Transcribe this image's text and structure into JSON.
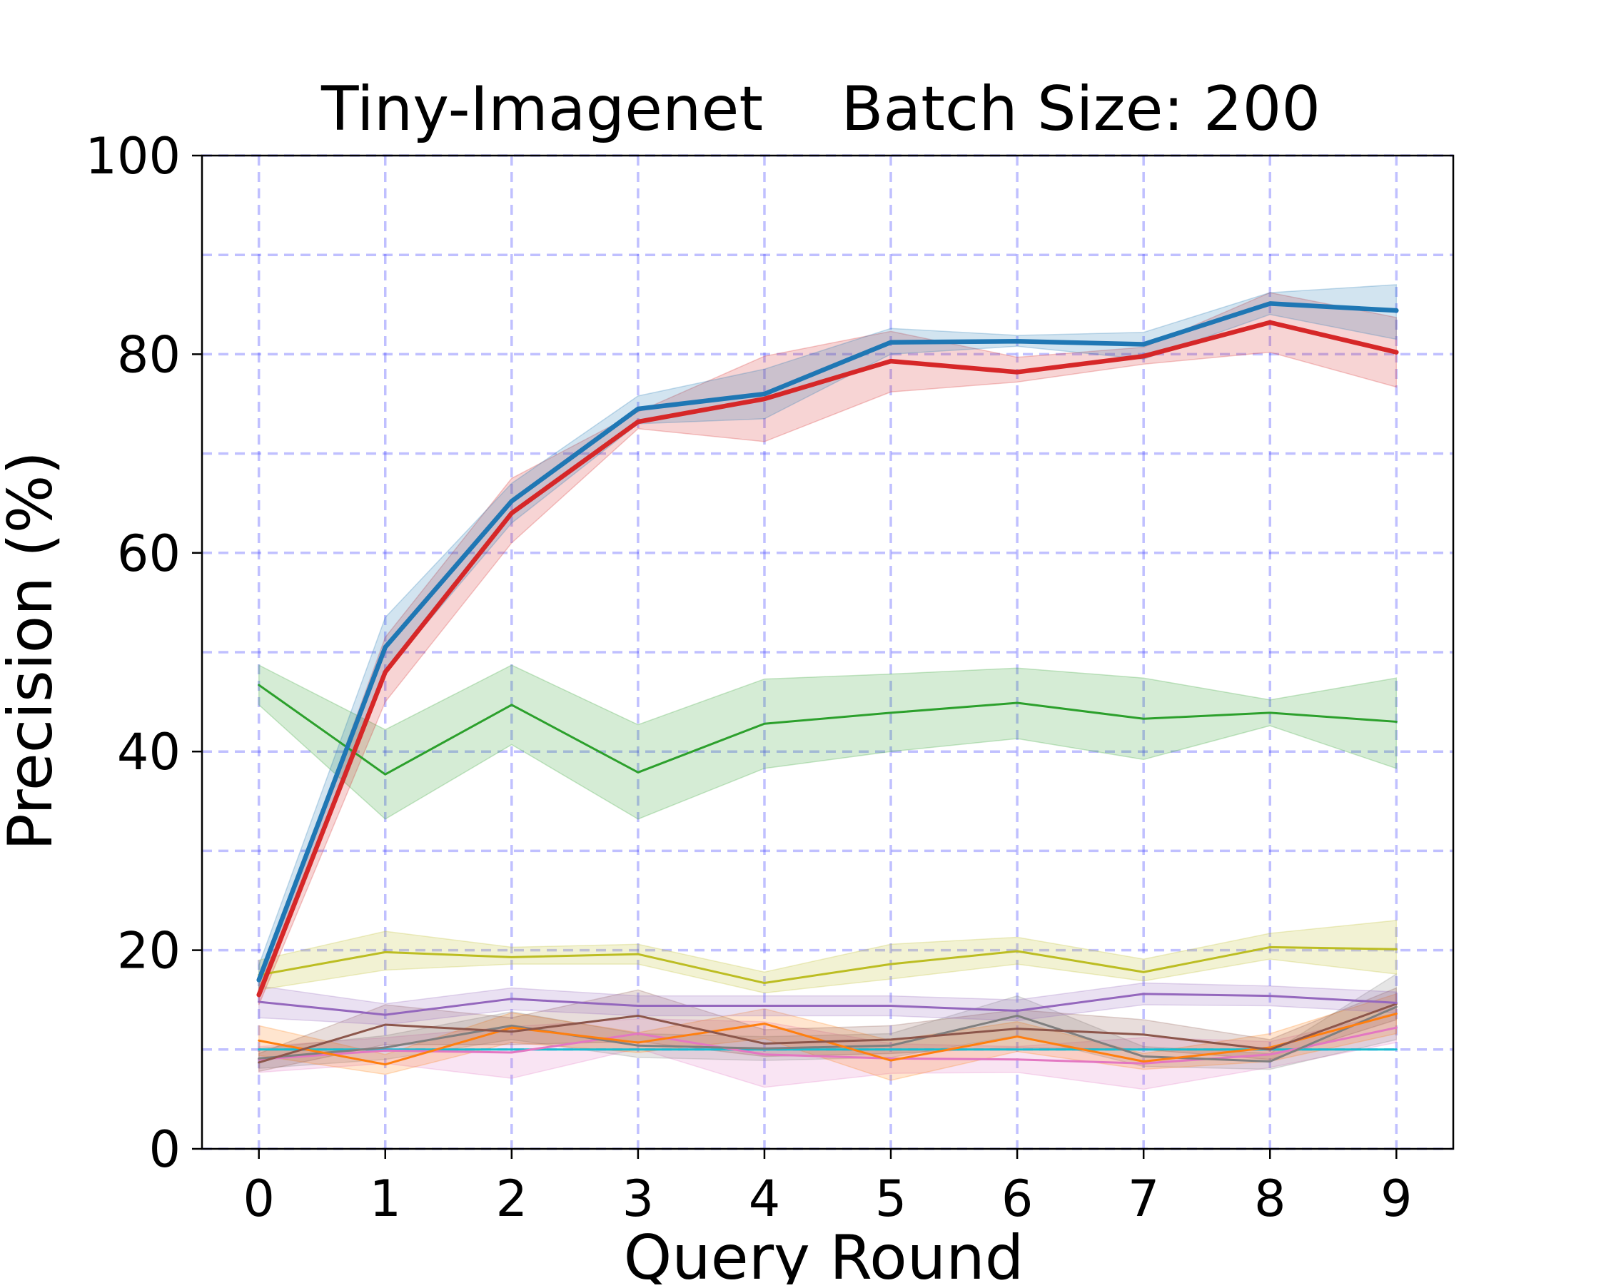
{
  "chart_data": {
    "type": "line",
    "title": "Tiny-Imagenet    Batch Size: 200",
    "xlabel": "Query Round",
    "ylabel": "Precision (%)",
    "xlim": [
      -0.45,
      9.45
    ],
    "ylim": [
      0,
      100
    ],
    "x": [
      0,
      1,
      2,
      3,
      4,
      5,
      6,
      7,
      8,
      9
    ],
    "xticks": [
      "0",
      "1",
      "2",
      "3",
      "4",
      "5",
      "6",
      "7",
      "8",
      "9"
    ],
    "yticks": [
      "0",
      "20",
      "40",
      "60",
      "80",
      "100"
    ],
    "grid": {
      "on": true,
      "style": "dashed",
      "color": "#3030ff",
      "y_minor_step": 10
    },
    "series": [
      {
        "color": "#1f77b4",
        "emphasis": "thick",
        "values": [
          17.0,
          50.5,
          65.2,
          74.5,
          76.0,
          81.2,
          81.3,
          81.0,
          85.1,
          84.4
        ],
        "lower": [
          15.5,
          48.0,
          63.0,
          73.0,
          73.5,
          80.0,
          80.8,
          79.5,
          84.0,
          81.5
        ],
        "upper": [
          18.5,
          53.5,
          67.0,
          75.8,
          78.5,
          82.6,
          81.9,
          82.2,
          86.2,
          87.0
        ]
      },
      {
        "color": "#d62728",
        "emphasis": "thick",
        "values": [
          15.5,
          48.0,
          64.0,
          73.2,
          75.5,
          79.3,
          78.2,
          79.8,
          83.2,
          80.2
        ],
        "lower": [
          14.5,
          45.0,
          61.0,
          72.5,
          71.2,
          76.2,
          77.2,
          79.0,
          80.2,
          76.7
        ],
        "upper": [
          16.5,
          51.5,
          67.5,
          74.2,
          79.8,
          82.3,
          79.7,
          80.7,
          86.2,
          83.7
        ]
      },
      {
        "color": "#2ca02c",
        "emphasis": "thin",
        "values": [
          46.7,
          37.7,
          44.7,
          37.9,
          42.8,
          43.9,
          44.9,
          43.3,
          43.9,
          43.0
        ],
        "lower": [
          44.7,
          33.2,
          40.7,
          33.2,
          38.3,
          40.0,
          41.3,
          39.2,
          42.6,
          38.3
        ],
        "upper": [
          48.7,
          42.2,
          48.7,
          42.7,
          47.3,
          47.8,
          48.4,
          47.4,
          45.2,
          47.4
        ]
      },
      {
        "color": "#bcbd22",
        "emphasis": "thin",
        "values": [
          17.5,
          19.8,
          19.3,
          19.6,
          16.7,
          18.6,
          19.9,
          17.8,
          20.3,
          20.1
        ],
        "lower": [
          16.0,
          18.0,
          18.6,
          18.6,
          15.7,
          17.1,
          18.6,
          16.9,
          19.1,
          17.6
        ],
        "upper": [
          19.0,
          21.9,
          20.3,
          20.6,
          17.8,
          20.6,
          21.3,
          19.1,
          21.7,
          23.0
        ]
      },
      {
        "color": "#9467bd",
        "emphasis": "thin",
        "values": [
          14.8,
          13.5,
          15.1,
          14.4,
          14.4,
          14.4,
          13.9,
          15.6,
          15.4,
          14.7
        ],
        "lower": [
          13.2,
          12.5,
          14.0,
          13.4,
          13.4,
          13.4,
          12.9,
          14.5,
          14.4,
          13.7
        ],
        "upper": [
          16.4,
          14.6,
          16.2,
          15.4,
          15.4,
          15.4,
          15.0,
          16.7,
          16.4,
          15.8
        ]
      },
      {
        "color": "#8c564b",
        "emphasis": "thin",
        "values": [
          8.7,
          12.5,
          11.8,
          13.4,
          10.6,
          11.0,
          12.1,
          11.5,
          10.0,
          14.6
        ],
        "lower": [
          7.8,
          10.5,
          10.5,
          10.8,
          9.3,
          9.6,
          10.2,
          10.0,
          9.0,
          13.0
        ],
        "upper": [
          9.6,
          14.5,
          13.2,
          16.0,
          12.0,
          12.4,
          14.0,
          13.0,
          11.0,
          16.2
        ]
      },
      {
        "color": "#ff7f0e",
        "emphasis": "thin",
        "values": [
          10.9,
          8.5,
          12.2,
          10.7,
          12.6,
          8.9,
          11.3,
          8.8,
          10.2,
          13.6
        ],
        "lower": [
          9.4,
          7.5,
          10.7,
          9.7,
          11.1,
          6.9,
          9.8,
          8.0,
          8.8,
          11.6
        ],
        "upper": [
          12.4,
          9.5,
          13.7,
          11.7,
          14.1,
          10.9,
          12.8,
          9.6,
          11.6,
          15.6
        ]
      },
      {
        "color": "#7f7f7f",
        "emphasis": "thin",
        "values": [
          9.1,
          10.2,
          12.4,
          10.4,
          10.1,
          10.4,
          13.4,
          9.3,
          8.8,
          14.3
        ],
        "lower": [
          8.1,
          9.0,
          11.0,
          9.2,
          8.9,
          9.2,
          11.4,
          8.3,
          8.0,
          11.0
        ],
        "upper": [
          10.1,
          11.4,
          13.8,
          11.6,
          11.3,
          11.6,
          15.4,
          10.3,
          9.6,
          17.6
        ]
      },
      {
        "color": "#e377c2",
        "emphasis": "thin",
        "values": [
          9.0,
          9.9,
          9.7,
          11.6,
          9.5,
          9.1,
          9.0,
          8.6,
          9.5,
          12.2
        ],
        "lower": [
          7.7,
          8.6,
          7.1,
          10.1,
          6.2,
          7.6,
          7.7,
          6.0,
          8.2,
          10.7
        ],
        "upper": [
          10.3,
          11.2,
          12.3,
          13.1,
          12.8,
          10.6,
          10.3,
          11.2,
          10.8,
          13.7
        ]
      },
      {
        "color": "#17becf",
        "emphasis": "thin",
        "values": [
          10.0,
          10.0,
          10.0,
          10.0,
          10.0,
          10.0,
          10.0,
          10.0,
          10.0,
          10.0
        ],
        "lower": [
          10.0,
          10.0,
          10.0,
          10.0,
          10.0,
          10.0,
          10.0,
          10.0,
          10.0,
          10.0
        ],
        "upper": [
          10.0,
          10.0,
          10.0,
          10.0,
          10.0,
          10.0,
          10.0,
          10.0,
          10.0,
          10.0
        ]
      }
    ]
  }
}
